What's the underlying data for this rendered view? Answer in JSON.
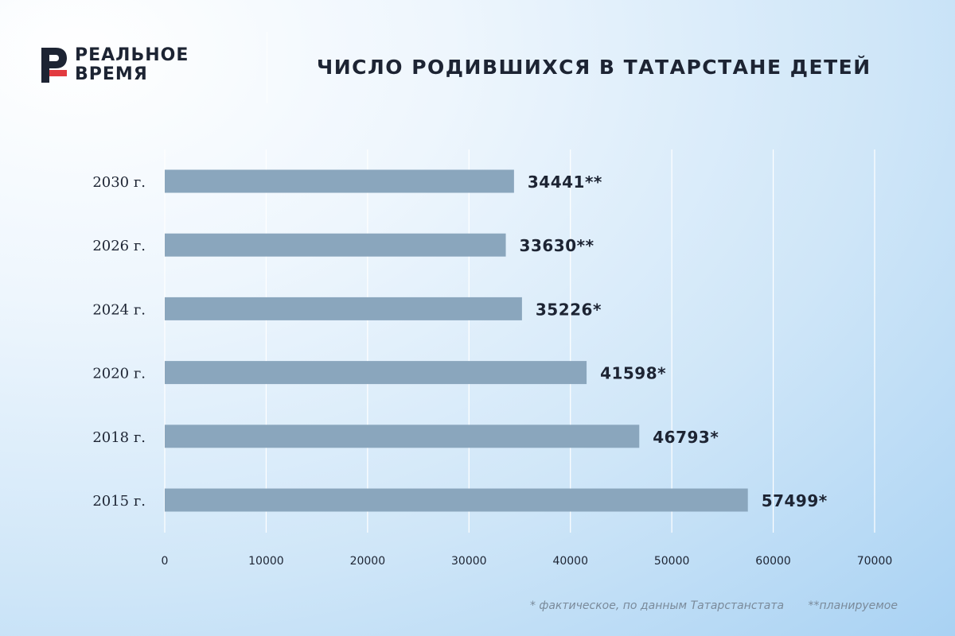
{
  "brand": {
    "line1": "РЕАЛЬНОЕ",
    "line2": "ВРЕМЯ"
  },
  "colors": {
    "bar": "#8aa6bd",
    "text": "#1d2433",
    "logo_red": "#e23a3f",
    "grid": "#ffffff"
  },
  "chart_data": {
    "type": "bar",
    "orientation": "horizontal",
    "title": "ЧИСЛО РОДИВШИХСЯ В ТАТАРСТАНЕ ДЕТЕЙ",
    "categories": [
      "2030 г.",
      "2026 г.",
      "2024 г.",
      "2020 г.",
      "2018 г.",
      "2015 г."
    ],
    "values": [
      34441,
      33630,
      35226,
      41598,
      46793,
      57499
    ],
    "value_labels": [
      "34441**",
      "33630**",
      "35226*",
      "41598*",
      "46793*",
      "57499*"
    ],
    "xlim": [
      0,
      70000
    ],
    "xticks": [
      0,
      10000,
      20000,
      30000,
      40000,
      50000,
      60000,
      70000
    ],
    "grid": "vertical",
    "xlabel": "",
    "ylabel": ""
  },
  "footnotes": {
    "actual": "* фактическое, по данным Татарстанстата",
    "planned": "**планируемое"
  }
}
